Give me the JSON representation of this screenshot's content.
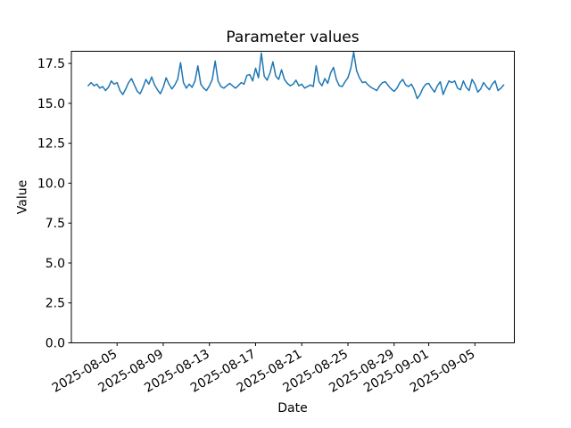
{
  "window": {
    "background": "#ffffff"
  },
  "chart_data": {
    "type": "line",
    "title": "Parameter values",
    "xlabel": "Date",
    "ylabel": "Value",
    "grid": false,
    "legend": null,
    "axes_color": "#000000",
    "ylim": [
      0,
      18.26
    ],
    "xlim": [
      "2025-08-01T01:00:00Z",
      "2025-09-08T10:00:00Z"
    ],
    "yticks": [
      0.0,
      2.5,
      5.0,
      7.5,
      10.0,
      12.5,
      15.0,
      17.5
    ],
    "ytick_labels": [
      "0.0",
      "2.5",
      "5.0",
      "7.5",
      "10.0",
      "12.5",
      "15.0",
      "17.5"
    ],
    "xtick_labels": [
      "2025-08-05",
      "2025-08-09",
      "2025-08-13",
      "2025-08-17",
      "2025-08-21",
      "2025-08-25",
      "2025-08-29",
      "2025-09-01",
      "2025-09-05"
    ],
    "series": [
      {
        "name": "parameter-values",
        "color": "#1f77b4",
        "line_width": 1.5,
        "x_start": "2025-08-02T12:00:00Z",
        "x_step_hours": 6,
        "values": [
          16.1,
          16.3,
          16.1,
          16.2,
          15.95,
          16.05,
          15.8,
          16.0,
          16.4,
          16.2,
          16.3,
          15.8,
          15.55,
          15.9,
          16.3,
          16.55,
          16.15,
          15.75,
          15.6,
          16.0,
          16.5,
          16.2,
          16.65,
          16.15,
          15.85,
          15.6,
          16.0,
          16.6,
          16.2,
          15.9,
          16.15,
          16.5,
          17.55,
          16.3,
          15.95,
          16.2,
          16.0,
          16.4,
          17.35,
          16.2,
          15.95,
          15.8,
          16.1,
          16.5,
          17.65,
          16.4,
          16.05,
          15.95,
          16.1,
          16.25,
          16.1,
          15.95,
          16.1,
          16.3,
          16.2,
          16.75,
          16.8,
          16.4,
          17.2,
          16.6,
          18.15,
          16.7,
          16.45,
          16.9,
          17.6,
          16.7,
          16.5,
          17.1,
          16.5,
          16.25,
          16.1,
          16.2,
          16.45,
          16.1,
          16.2,
          15.95,
          16.05,
          16.15,
          16.05,
          17.35,
          16.35,
          16.1,
          16.55,
          16.25,
          16.9,
          17.25,
          16.5,
          16.1,
          16.05,
          16.35,
          16.6,
          17.2,
          18.2,
          17.05,
          16.6,
          16.3,
          16.35,
          16.15,
          16.0,
          15.9,
          15.8,
          16.1,
          16.3,
          16.35,
          16.1,
          15.9,
          15.75,
          15.95,
          16.3,
          16.5,
          16.15,
          16.05,
          16.2,
          15.85,
          15.3,
          15.55,
          15.95,
          16.2,
          16.25,
          15.95,
          15.7,
          16.1,
          16.35,
          15.55,
          16.0,
          16.4,
          16.3,
          16.4,
          15.95,
          15.85,
          16.4,
          16.0,
          15.8,
          16.5,
          16.2,
          15.7,
          15.9,
          16.3,
          16.05,
          15.85,
          16.2,
          16.4,
          15.8,
          15.95,
          16.15
        ]
      }
    ]
  }
}
